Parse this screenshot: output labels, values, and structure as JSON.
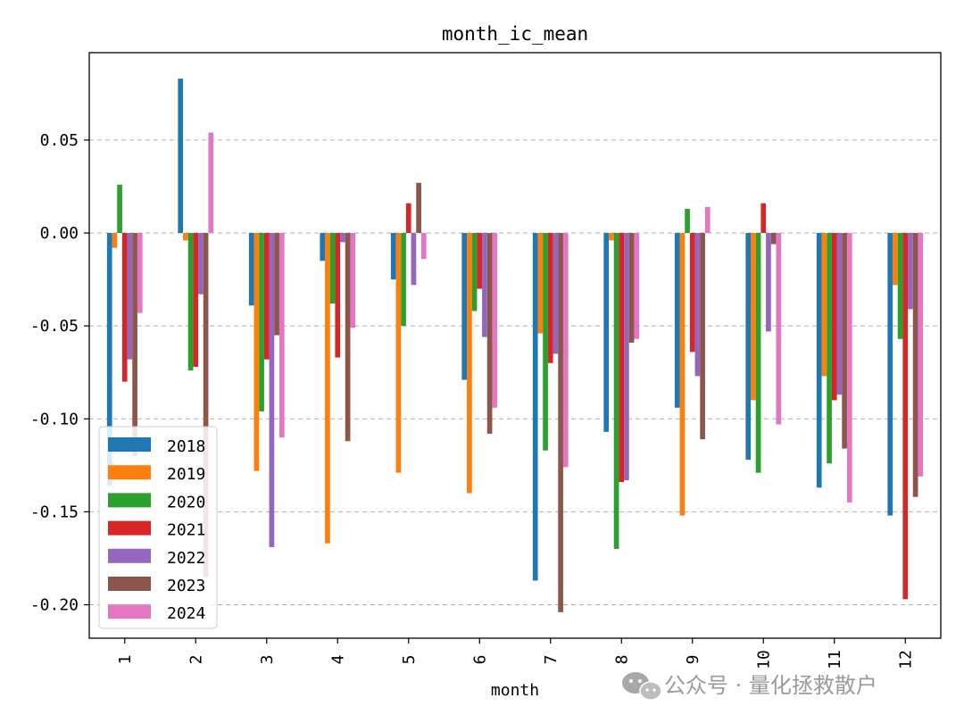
{
  "chart_data": {
    "type": "bar",
    "title": "month_ic_mean",
    "xlabel": "month",
    "ylabel": "",
    "ylim": [
      -0.218,
      0.097
    ],
    "yticks": [
      "0.05",
      "0.00",
      "-0.05",
      "-0.10",
      "-0.15",
      "-0.20"
    ],
    "ytick_values": [
      0.05,
      0.0,
      -0.05,
      -0.1,
      -0.15,
      -0.2
    ],
    "grid": "horizontal dashed",
    "legend_position": "lower-left",
    "categories": [
      "1",
      "2",
      "3",
      "4",
      "5",
      "6",
      "7",
      "8",
      "9",
      "10",
      "11",
      "12"
    ],
    "series": [
      {
        "name": "2018",
        "color": "#1f77b4",
        "values": [
          -0.136,
          0.083,
          -0.039,
          -0.015,
          -0.025,
          -0.079,
          -0.187,
          -0.107,
          -0.094,
          -0.122,
          -0.137,
          -0.152
        ]
      },
      {
        "name": "2019",
        "color": "#ff7f0e",
        "values": [
          -0.008,
          -0.004,
          -0.128,
          -0.167,
          -0.129,
          -0.14,
          -0.054,
          -0.004,
          -0.152,
          -0.09,
          -0.077,
          -0.028
        ]
      },
      {
        "name": "2020",
        "color": "#2ca02c",
        "values": [
          0.026,
          -0.074,
          -0.096,
          -0.038,
          -0.05,
          -0.042,
          -0.117,
          -0.17,
          0.013,
          -0.129,
          -0.124,
          -0.057
        ]
      },
      {
        "name": "2021",
        "color": "#d62728",
        "values": [
          -0.08,
          -0.072,
          -0.068,
          -0.067,
          0.016,
          -0.03,
          -0.07,
          -0.134,
          -0.064,
          0.016,
          -0.09,
          -0.197
        ]
      },
      {
        "name": "2022",
        "color": "#9467bd",
        "values": [
          -0.068,
          -0.033,
          -0.169,
          -0.005,
          -0.028,
          -0.056,
          -0.065,
          -0.133,
          -0.077,
          -0.053,
          -0.087,
          -0.041
        ]
      },
      {
        "name": "2023",
        "color": "#8c564b",
        "values": [
          -0.12,
          -0.185,
          -0.055,
          -0.112,
          0.027,
          -0.108,
          -0.204,
          -0.059,
          -0.111,
          -0.006,
          -0.116,
          -0.142
        ]
      },
      {
        "name": "2024",
        "color": "#e377c2",
        "values": [
          -0.043,
          0.054,
          -0.11,
          -0.051,
          -0.014,
          -0.094,
          -0.126,
          -0.057,
          0.014,
          -0.103,
          -0.145,
          -0.131
        ]
      }
    ]
  },
  "watermark": {
    "text": "公众号 · 量化拯救散户",
    "icon": "wechat-icon"
  }
}
